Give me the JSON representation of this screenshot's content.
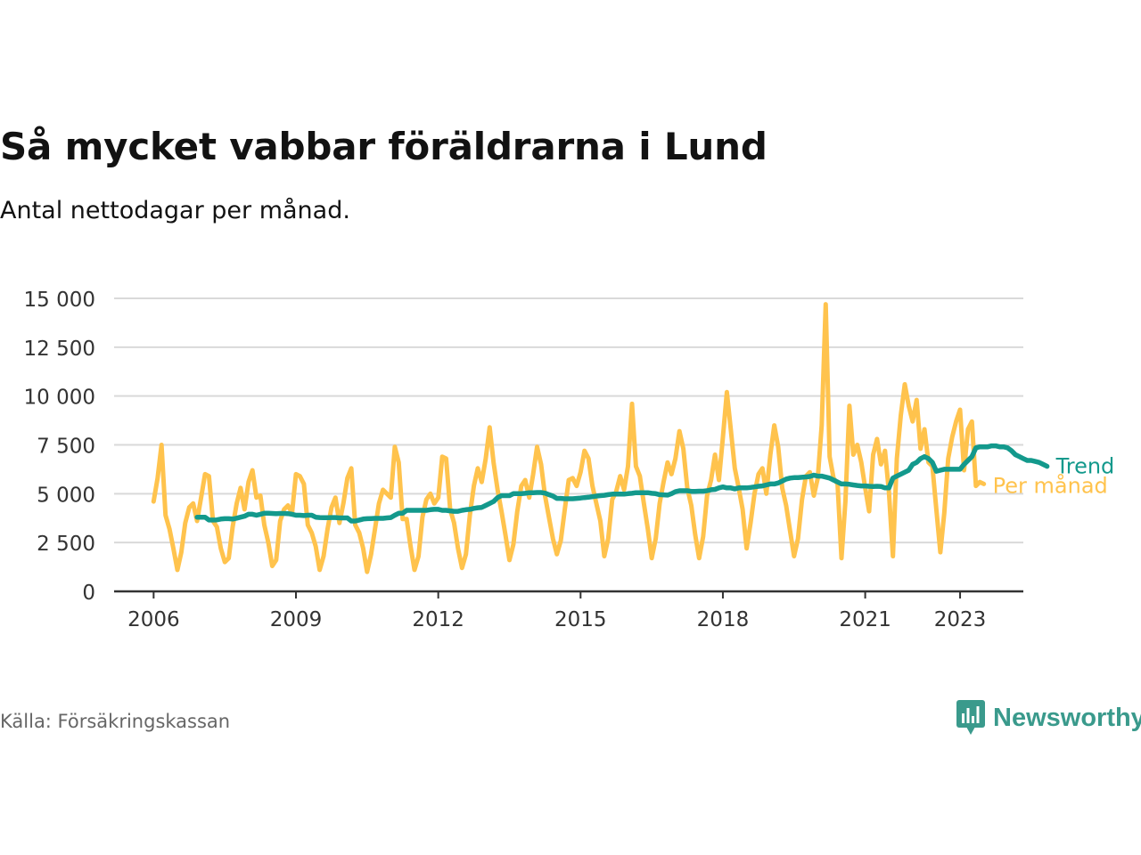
{
  "header": {
    "title": "Så mycket vabbar föräldrarna i Lund",
    "subtitle": "Antal nettodagar per månad."
  },
  "footer": {
    "source": "Källa: Försäkringskassan",
    "logo_text": "Newsworthy",
    "logo_icon": "bar-chart-icon",
    "logo_color": "#3a9a8c"
  },
  "colors": {
    "per_month": "#ffc34d",
    "trend": "#13998c",
    "grid": "#d9d9d9",
    "axis": "#333333"
  },
  "chart_data": {
    "type": "line",
    "title": "Så mycket vabbar föräldrarna i Lund",
    "subtitle": "Antal nettodagar per månad.",
    "x_ticks": [
      "2006",
      "2009",
      "2012",
      "2015",
      "2018",
      "2021",
      "2023"
    ],
    "y_ticks": [
      "0",
      "2 500",
      "5 000",
      "7 500",
      "10 000",
      "12 500",
      "15 000"
    ],
    "ylim": [
      0,
      15000
    ],
    "xlim": [
      "2005-03",
      "2024-05"
    ],
    "grid": true,
    "series": [
      {
        "name": "Per månad",
        "color": "#ffc34d",
        "start": "2006-01",
        "values": [
          4600,
          5800,
          7500,
          3900,
          3200,
          2200,
          1100,
          2000,
          3500,
          4300,
          4500,
          3600,
          4800,
          6000,
          5900,
          3600,
          3300,
          2200,
          1500,
          1700,
          3300,
          4500,
          5300,
          4200,
          5600,
          6200,
          4800,
          4900,
          3400,
          2500,
          1300,
          1600,
          3600,
          4200,
          4400,
          4000,
          6000,
          5900,
          5500,
          3400,
          3000,
          2300,
          1100,
          1800,
          3200,
          4300,
          4800,
          3500,
          4500,
          5800,
          6300,
          3400,
          3000,
          2200,
          1000,
          1900,
          3200,
          4500,
          5200,
          5000,
          4800,
          7400,
          6600,
          3700,
          3700,
          2300,
          1100,
          1800,
          3800,
          4700,
          5000,
          4500,
          4800,
          6900,
          6800,
          4200,
          3500,
          2200,
          1200,
          1900,
          3900,
          5400,
          6300,
          5600,
          6800,
          8400,
          6600,
          5200,
          4100,
          2900,
          1600,
          2400,
          4100,
          5400,
          5700,
          4800,
          6000,
          7400,
          6500,
          4900,
          3800,
          2700,
          1900,
          2600,
          4200,
          5700,
          5800,
          5400,
          6100,
          7200,
          6800,
          5400,
          4500,
          3600,
          1800,
          2700,
          4700,
          5100,
          5900,
          5200,
          6400,
          9600,
          6400,
          5900,
          4500,
          3200,
          1700,
          2700,
          4500,
          5600,
          6600,
          6000,
          6800,
          8200,
          7300,
          5300,
          4400,
          2900,
          1700,
          2800,
          4900,
          5700,
          7000,
          5700,
          7900,
          10200,
          8300,
          6300,
          5300,
          4200,
          2200,
          3500,
          5000,
          6000,
          6300,
          5000,
          7000,
          8500,
          7400,
          5300,
          4400,
          3100,
          1800,
          2700,
          4700,
          5900,
          6100,
          4900,
          5800,
          8500,
          14700,
          6900,
          5800,
          5500,
          1700,
          4600,
          9500,
          7000,
          7500,
          6600,
          5300,
          4100,
          7000,
          7800,
          6500,
          7200,
          5100,
          1800,
          6800,
          9000,
          10600,
          9500,
          8700,
          9800,
          7300,
          8300,
          6600,
          6400,
          4200,
          2000,
          4000,
          6800,
          7900,
          8700,
          9300,
          6200,
          8300,
          8700,
          5400,
          5600,
          5500
        ]
      },
      {
        "name": "Trend",
        "color": "#13998c",
        "start": "2006-12",
        "values": [
          3800,
          3800,
          3800,
          3650,
          3650,
          3660,
          3700,
          3720,
          3720,
          3700,
          3750,
          3800,
          3850,
          3950,
          3950,
          3900,
          3950,
          4000,
          4000,
          3990,
          3980,
          3990,
          3990,
          3980,
          3950,
          3900,
          3900,
          3880,
          3900,
          3900,
          3800,
          3780,
          3770,
          3770,
          3780,
          3780,
          3760,
          3760,
          3760,
          3600,
          3600,
          3650,
          3700,
          3720,
          3730,
          3740,
          3740,
          3740,
          3760,
          3780,
          3900,
          4000,
          4000,
          4150,
          4150,
          4150,
          4150,
          4150,
          4150,
          4180,
          4200,
          4200,
          4150,
          4150,
          4120,
          4100,
          4100,
          4150,
          4180,
          4200,
          4250,
          4280,
          4300,
          4400,
          4500,
          4600,
          4800,
          4900,
          4900,
          4900,
          5000,
          5000,
          5000,
          5020,
          5050,
          5050,
          5060,
          5060,
          5030,
          4950,
          4880,
          4760,
          4760,
          4740,
          4740,
          4740,
          4760,
          4780,
          4800,
          4820,
          4850,
          4880,
          4900,
          4920,
          4950,
          4980,
          4980,
          4980,
          4980,
          5000,
          5020,
          5050,
          5050,
          5050,
          5050,
          5020,
          5000,
          4950,
          4940,
          4930,
          5000,
          5100,
          5150,
          5150,
          5150,
          5120,
          5120,
          5130,
          5130,
          5150,
          5200,
          5220,
          5300,
          5350,
          5300,
          5300,
          5250,
          5300,
          5300,
          5300,
          5320,
          5350,
          5380,
          5400,
          5450,
          5500,
          5500,
          5550,
          5650,
          5750,
          5800,
          5820,
          5820,
          5840,
          5860,
          5880,
          5950,
          5900,
          5900,
          5850,
          5800,
          5700,
          5600,
          5500,
          5500,
          5480,
          5450,
          5420,
          5400,
          5400,
          5380,
          5370,
          5380,
          5370,
          5300,
          5300,
          5800,
          5900,
          6000,
          6100,
          6200,
          6500,
          6600,
          6800,
          6900,
          6800,
          6600,
          6150,
          6200,
          6250,
          6250,
          6250,
          6250,
          6250,
          6500,
          6700,
          6900,
          7350,
          7400,
          7400,
          7400,
          7450,
          7450,
          7400,
          7400,
          7350,
          7200,
          7000,
          6900,
          6800,
          6700,
          6700,
          6650,
          6600,
          6500,
          6400
        ]
      }
    ]
  }
}
